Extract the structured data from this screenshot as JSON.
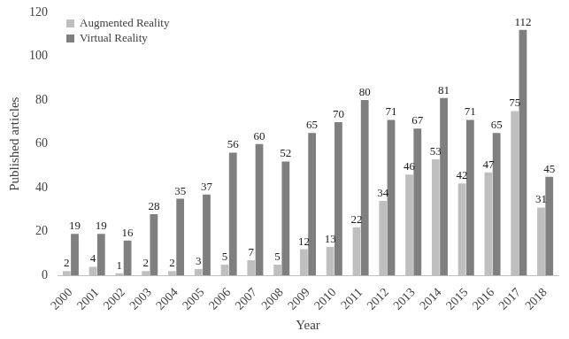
{
  "chart_data": {
    "type": "bar",
    "x_label": "Year",
    "y_label": "Published articles",
    "categories": [
      "2000",
      "2001",
      "2002",
      "2003",
      "2004",
      "2005",
      "2006",
      "2007",
      "2008",
      "2009",
      "2010",
      "2011",
      "2012",
      "2013",
      "2014",
      "2015",
      "2016",
      "2017",
      "2018"
    ],
    "series": [
      {
        "name": "Augmented Reality",
        "color": "#bfbfbf",
        "values": [
          2,
          4,
          1,
          2,
          2,
          3,
          5,
          7,
          5,
          12,
          13,
          22,
          34,
          46,
          53,
          42,
          47,
          75,
          31
        ]
      },
      {
        "name": "Virtual Reality",
        "color": "#7f7f7f",
        "values": [
          19,
          19,
          16,
          28,
          35,
          37,
          56,
          60,
          52,
          65,
          70,
          80,
          71,
          67,
          81,
          71,
          65,
          112,
          45
        ]
      }
    ],
    "ylim": [
      0,
      120
    ],
    "yticks": [
      0,
      20,
      40,
      60,
      80,
      100,
      120
    ],
    "grid": false,
    "legend": "upper left",
    "data_labels": true
  }
}
